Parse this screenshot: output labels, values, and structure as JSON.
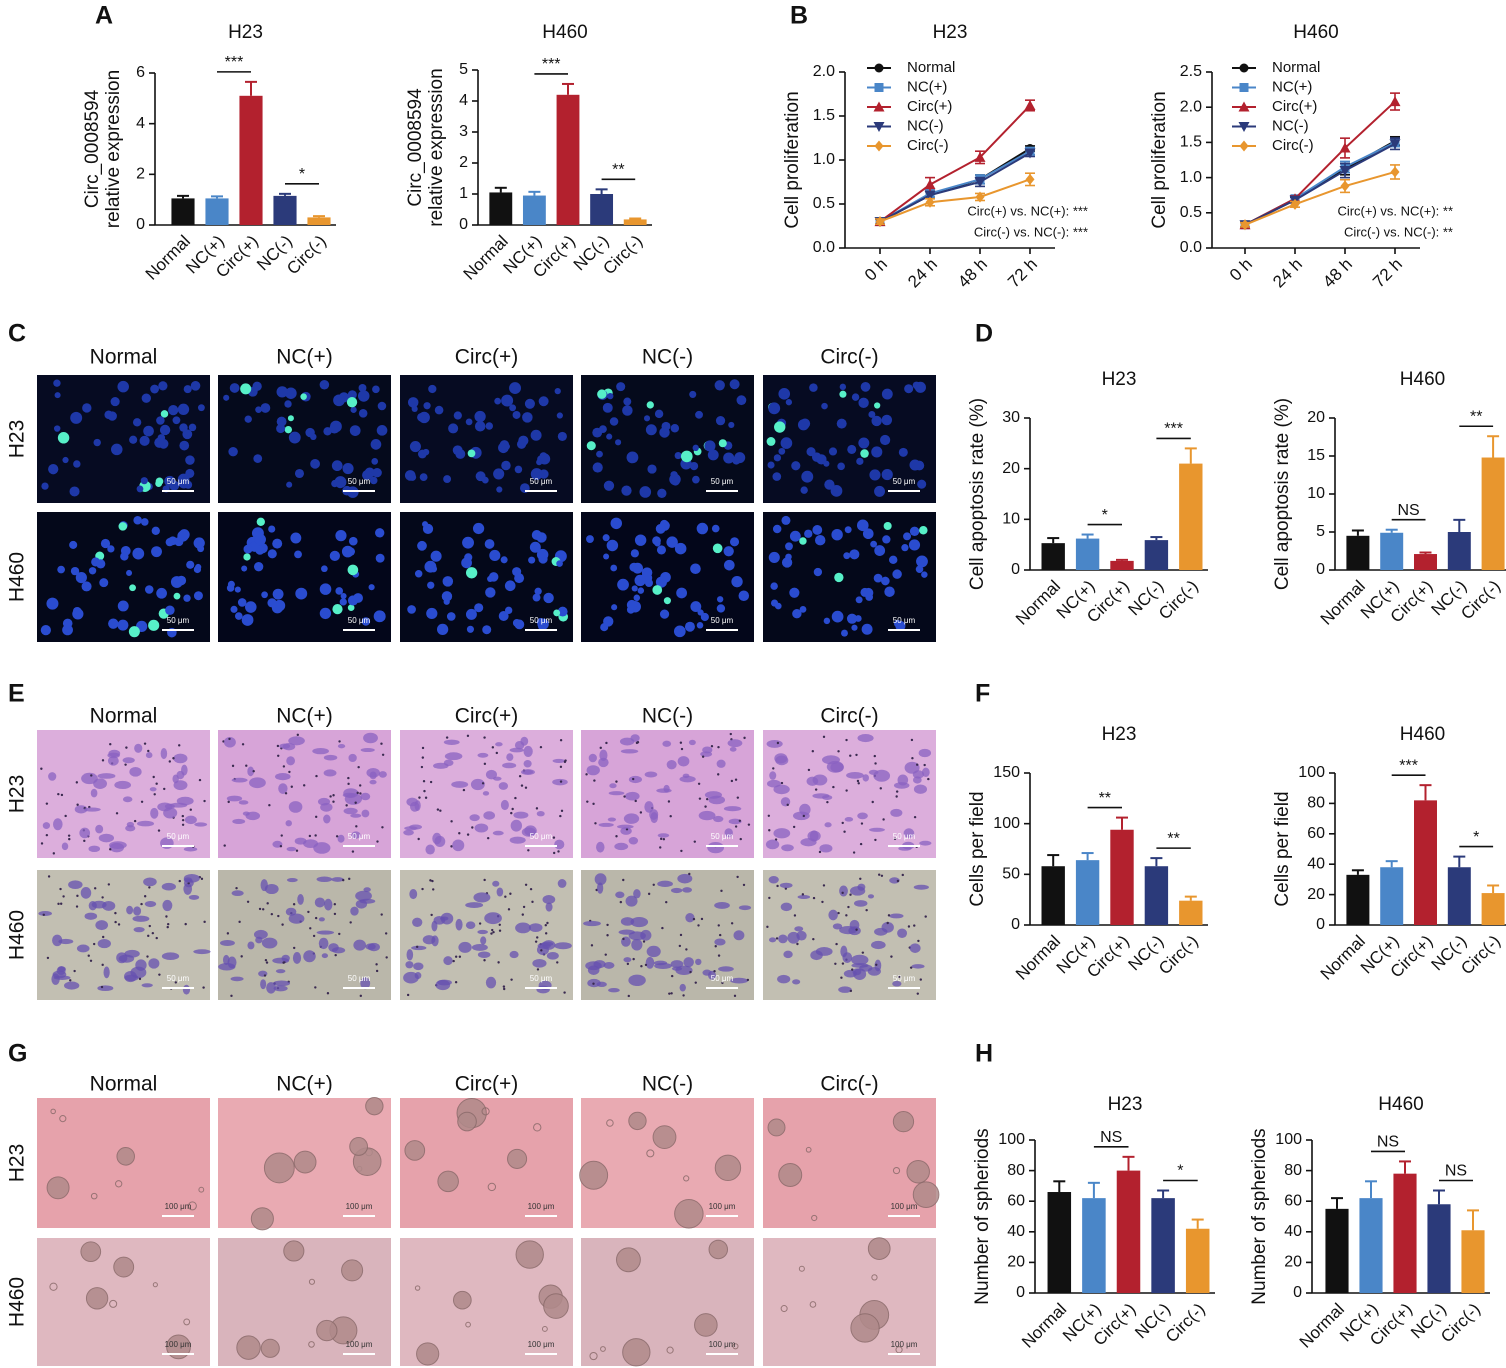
{
  "panel_labels": [
    "A",
    "B",
    "C",
    "D",
    "E",
    "F",
    "G",
    "H"
  ],
  "chart_data": [
    {
      "type": "bar",
      "title": "H23",
      "ylabel": [
        "Circ_0008594",
        "relative  expression"
      ],
      "categories": [
        "Normal",
        "NC(+)",
        "Circ(+)",
        "NC(-)",
        "Circ(-)"
      ],
      "values": [
        1.05,
        1.05,
        5.1,
        1.15,
        0.3
      ],
      "errors": [
        0.1,
        0.08,
        0.55,
        0.08,
        0.05
      ],
      "colors": [
        "#111111",
        "#4a86c8",
        "#b3212e",
        "#2b3a7a",
        "#e8962e"
      ],
      "ylim": [
        0,
        6
      ],
      "yticks": [
        0,
        2,
        4,
        6
      ],
      "significance": [
        {
          "between": [
            "NC(+)",
            "Circ(+)"
          ],
          "label": "***"
        },
        {
          "between": [
            "NC(-)",
            "Circ(-)"
          ],
          "label": "*"
        }
      ]
    },
    {
      "type": "bar",
      "title": "H460",
      "ylabel": [
        "Circ_0008594",
        "relative  expression"
      ],
      "categories": [
        "Normal",
        "NC(+)",
        "Circ(+)",
        "NC(-)",
        "Circ(-)"
      ],
      "values": [
        1.05,
        0.95,
        4.2,
        1.0,
        0.18
      ],
      "errors": [
        0.15,
        0.12,
        0.35,
        0.15,
        0.03
      ],
      "colors": [
        "#111111",
        "#4a86c8",
        "#b3212e",
        "#2b3a7a",
        "#e8962e"
      ],
      "ylim": [
        0,
        5
      ],
      "yticks": [
        0,
        1,
        2,
        3,
        4,
        5
      ],
      "significance": [
        {
          "between": [
            "NC(+)",
            "Circ(+)"
          ],
          "label": "***"
        },
        {
          "between": [
            "NC(-)",
            "Circ(-)"
          ],
          "label": "**"
        }
      ]
    },
    {
      "type": "line",
      "title": "H23",
      "ylabel": [
        "Cell proliferation"
      ],
      "categories": [
        "0 h",
        "24 h",
        "48 h",
        "72 h"
      ],
      "series": [
        {
          "name": "Normal",
          "color": "#111111",
          "marker": "circle",
          "values": [
            0.3,
            0.6,
            0.78,
            1.13
          ],
          "errors": [
            0.03,
            0.04,
            0.05,
            0.03
          ]
        },
        {
          "name": "NC(+)",
          "color": "#4a86c8",
          "marker": "square",
          "values": [
            0.3,
            0.62,
            0.78,
            1.1
          ],
          "errors": [
            0.03,
            0.04,
            0.05,
            0.04
          ]
        },
        {
          "name": "Circ(+)",
          "color": "#b3212e",
          "marker": "triangle",
          "values": [
            0.3,
            0.72,
            1.03,
            1.62
          ],
          "errors": [
            0.03,
            0.08,
            0.07,
            0.06
          ]
        },
        {
          "name": "NC(-)",
          "color": "#2b3a7a",
          "marker": "triangle-down",
          "values": [
            0.3,
            0.6,
            0.75,
            1.08
          ],
          "errors": [
            0.03,
            0.04,
            0.05,
            0.04
          ]
        },
        {
          "name": "Circ(-)",
          "color": "#e8962e",
          "marker": "diamond",
          "values": [
            0.3,
            0.52,
            0.58,
            0.78
          ],
          "errors": [
            0.03,
            0.04,
            0.04,
            0.07
          ]
        }
      ],
      "ylim": [
        0,
        2
      ],
      "yticks": [
        {
          "value": 0,
          "label": "0.0"
        },
        {
          "value": 0.5,
          "label": "0.5"
        },
        {
          "value": 1,
          "label": "1.0"
        },
        {
          "value": 1.5,
          "label": "1.5"
        },
        {
          "value": 2,
          "label": "2.0"
        }
      ],
      "legend": "upper left",
      "annotations": [
        "Circ(+) vs. NC(+): ***",
        "Circ(-) vs. NC(-): ***"
      ]
    },
    {
      "type": "line",
      "title": "H460",
      "ylabel": [
        "Cell proliferation"
      ],
      "categories": [
        "0 h",
        "24 h",
        "48 h",
        "72 h"
      ],
      "series": [
        {
          "name": "Normal",
          "color": "#111111",
          "marker": "circle",
          "values": [
            0.33,
            0.7,
            1.12,
            1.52
          ],
          "errors": [
            0.03,
            0.04,
            0.08,
            0.06
          ]
        },
        {
          "name": "NC(+)",
          "color": "#4a86c8",
          "marker": "square",
          "values": [
            0.33,
            0.7,
            1.15,
            1.5
          ],
          "errors": [
            0.03,
            0.04,
            0.08,
            0.06
          ]
        },
        {
          "name": "Circ(+)",
          "color": "#b3212e",
          "marker": "triangle",
          "values": [
            0.33,
            0.7,
            1.42,
            2.08
          ],
          "errors": [
            0.03,
            0.04,
            0.14,
            0.12
          ]
        },
        {
          "name": "NC(-)",
          "color": "#2b3a7a",
          "marker": "triangle-down",
          "values": [
            0.33,
            0.68,
            1.1,
            1.48
          ],
          "errors": [
            0.03,
            0.04,
            0.1,
            0.08
          ]
        },
        {
          "name": "Circ(-)",
          "color": "#e8962e",
          "marker": "diamond",
          "values": [
            0.33,
            0.62,
            0.88,
            1.08
          ],
          "errors": [
            0.03,
            0.04,
            0.09,
            0.1
          ]
        }
      ],
      "ylim": [
        0,
        2.5
      ],
      "yticks": [
        {
          "value": 0,
          "label": "0.0"
        },
        {
          "value": 0.5,
          "label": "0.5"
        },
        {
          "value": 1,
          "label": "1.0"
        },
        {
          "value": 1.5,
          "label": "1.5"
        },
        {
          "value": 2,
          "label": "2.0"
        },
        {
          "value": 2.5,
          "label": "2.5"
        }
      ],
      "legend": "upper left",
      "annotations": [
        "Circ(+) vs. NC(+): **",
        "Circ(-) vs. NC(-): **"
      ]
    },
    {
      "type": "bar",
      "title": "H23",
      "ylabel": [
        "Cell apoptosis rate (%)"
      ],
      "categories": [
        "Normal",
        "NC(+)",
        "Circ(+)",
        "NC(-)",
        "Circ(-)"
      ],
      "values": [
        5.3,
        6.2,
        1.8,
        5.9,
        21
      ],
      "errors": [
        1,
        0.8,
        0.2,
        0.6,
        3
      ],
      "colors": [
        "#111111",
        "#4a86c8",
        "#b3212e",
        "#2b3a7a",
        "#e8962e"
      ],
      "ylim": [
        0,
        30
      ],
      "yticks": [
        0,
        10,
        20,
        30
      ],
      "significance": [
        {
          "between": [
            "NC(+)",
            "Circ(+)"
          ],
          "label": "*"
        },
        {
          "between": [
            "NC(-)",
            "Circ(-)"
          ],
          "label": "***"
        }
      ]
    },
    {
      "type": "bar",
      "title": "H460",
      "ylabel": [
        "Cell apoptosis rate (%)"
      ],
      "categories": [
        "Normal",
        "NC(+)",
        "Circ(+)",
        "NC(-)",
        "Circ(-)"
      ],
      "values": [
        4.5,
        4.9,
        2.1,
        5.0,
        14.8
      ],
      "errors": [
        0.7,
        0.4,
        0.2,
        1.6,
        2.8
      ],
      "colors": [
        "#111111",
        "#4a86c8",
        "#b3212e",
        "#2b3a7a",
        "#e8962e"
      ],
      "ylim": [
        0,
        20
      ],
      "yticks": [
        0,
        5,
        10,
        15,
        20
      ],
      "significance": [
        {
          "between": [
            "NC(+)",
            "Circ(+)"
          ],
          "label": "NS"
        },
        {
          "between": [
            "NC(-)",
            "Circ(-)"
          ],
          "label": "**"
        }
      ]
    },
    {
      "type": "bar",
      "title": "H23",
      "ylabel": [
        "Cells per field"
      ],
      "categories": [
        "Normal",
        "NC(+)",
        "Circ(+)",
        "NC(-)",
        "Circ(-)"
      ],
      "values": [
        58,
        64,
        94,
        58,
        24
      ],
      "errors": [
        11,
        7,
        12,
        8,
        4
      ],
      "colors": [
        "#111111",
        "#4a86c8",
        "#b3212e",
        "#2b3a7a",
        "#e8962e"
      ],
      "ylim": [
        0,
        150
      ],
      "yticks": [
        0,
        50,
        100,
        150
      ],
      "significance": [
        {
          "between": [
            "NC(+)",
            "Circ(+)"
          ],
          "label": "**"
        },
        {
          "between": [
            "NC(-)",
            "Circ(-)"
          ],
          "label": "**"
        }
      ]
    },
    {
      "type": "bar",
      "title": "H460",
      "ylabel": [
        "Cells per field"
      ],
      "categories": [
        "Normal",
        "NC(+)",
        "Circ(+)",
        "NC(-)",
        "Circ(-)"
      ],
      "values": [
        33,
        38,
        82,
        38,
        21
      ],
      "errors": [
        3,
        4,
        10,
        7,
        5
      ],
      "colors": [
        "#111111",
        "#4a86c8",
        "#b3212e",
        "#2b3a7a",
        "#e8962e"
      ],
      "ylim": [
        0,
        100
      ],
      "yticks": [
        0,
        20,
        40,
        60,
        80,
        100
      ],
      "significance": [
        {
          "between": [
            "NC(+)",
            "Circ(+)"
          ],
          "label": "***"
        },
        {
          "between": [
            "NC(-)",
            "Circ(-)"
          ],
          "label": "*"
        }
      ]
    },
    {
      "type": "bar",
      "title": "H23",
      "ylabel": [
        "Number of spheriods"
      ],
      "categories": [
        "Normal",
        "NC(+)",
        "Circ(+)",
        "NC(-)",
        "Circ(-)"
      ],
      "values": [
        66,
        62,
        80,
        62,
        42
      ],
      "errors": [
        7,
        10,
        9,
        5,
        6
      ],
      "colors": [
        "#111111",
        "#4a86c8",
        "#b3212e",
        "#2b3a7a",
        "#e8962e"
      ],
      "ylim": [
        0,
        100
      ],
      "yticks": [
        0,
        20,
        40,
        60,
        80,
        100
      ],
      "significance": [
        {
          "between": [
            "NC(+)",
            "Circ(+)"
          ],
          "label": "NS"
        },
        {
          "between": [
            "NC(-)",
            "Circ(-)"
          ],
          "label": "*"
        }
      ]
    },
    {
      "type": "bar",
      "title": "H460",
      "ylabel": [
        "Number of spheriods"
      ],
      "categories": [
        "Normal",
        "NC(+)",
        "Circ(+)",
        "NC(-)",
        "Circ(-)"
      ],
      "values": [
        55,
        62,
        78,
        58,
        41
      ],
      "errors": [
        7,
        11,
        8,
        9,
        13
      ],
      "colors": [
        "#111111",
        "#4a86c8",
        "#b3212e",
        "#2b3a7a",
        "#e8962e"
      ],
      "ylim": [
        0,
        100
      ],
      "yticks": [
        0,
        20,
        40,
        60,
        80,
        100
      ],
      "significance": [
        {
          "between": [
            "NC(+)",
            "Circ(+)"
          ],
          "label": "NS"
        },
        {
          "between": [
            "NC(-)",
            "Circ(-)"
          ],
          "label": "NS"
        }
      ]
    }
  ],
  "image_panels": [
    {
      "columns": [
        "Normal",
        "NC(+)",
        "Circ(+)",
        "NC(-)",
        "Circ(-)"
      ],
      "rows": [
        "H23",
        "H460"
      ],
      "scale_bar": "50 μm"
    },
    {
      "columns": [
        "Normal",
        "NC(+)",
        "Circ(+)",
        "NC(-)",
        "Circ(-)"
      ],
      "rows": [
        "H23",
        "H460"
      ],
      "scale_bar": "50 μm"
    },
    {
      "columns": [
        "Normal",
        "NC(+)",
        "Circ(+)",
        "NC(-)",
        "Circ(-)"
      ],
      "rows": [
        "H23",
        "H460"
      ],
      "scale_bar": "100 μm"
    }
  ]
}
